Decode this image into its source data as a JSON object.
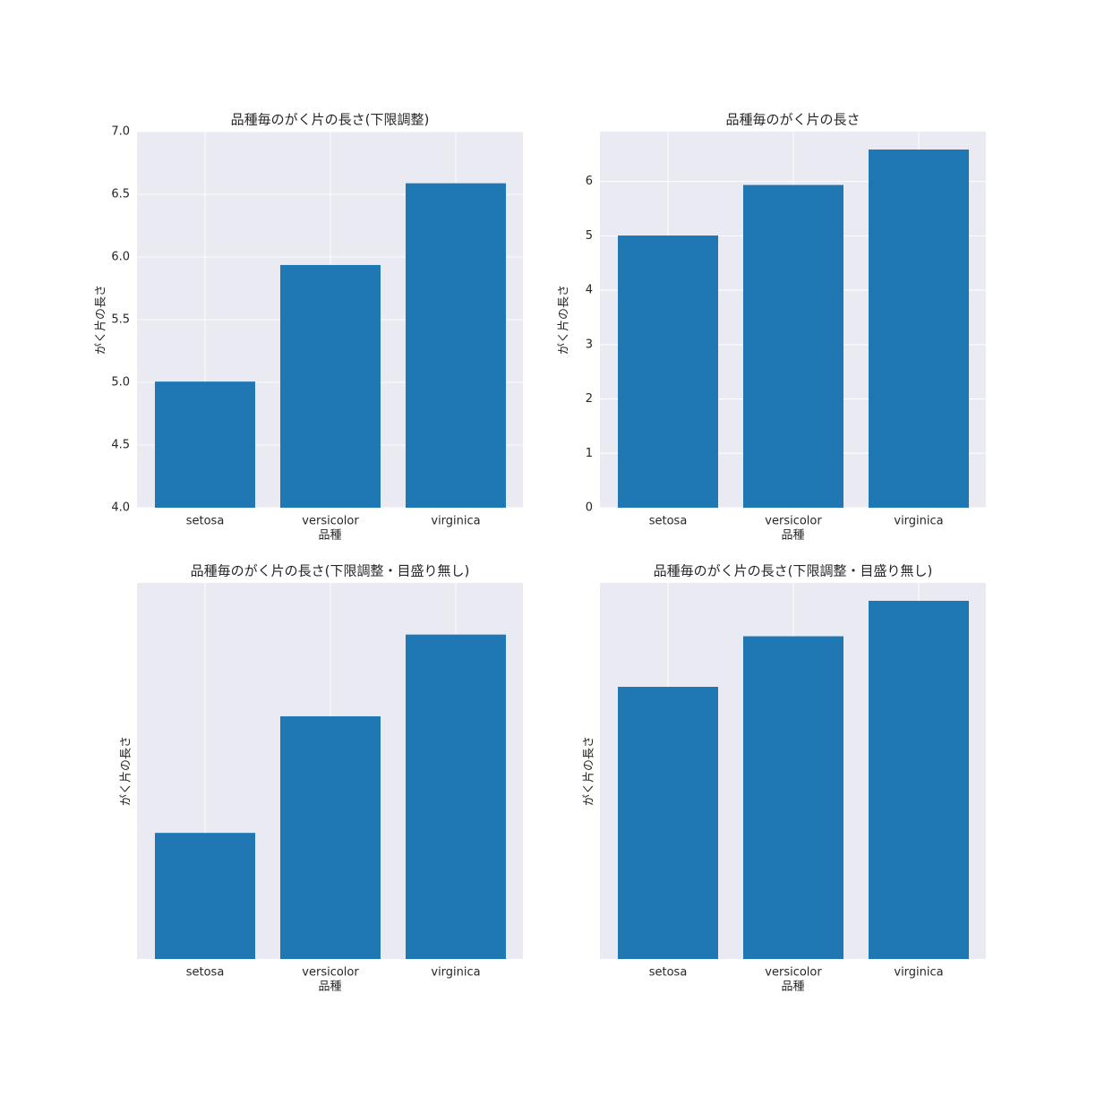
{
  "chart_data": [
    {
      "type": "bar",
      "title": "品種毎のがく片の長さ(下限調整)",
      "xlabel": "品種",
      "ylabel": "がく片の長さ",
      "categories": [
        "setosa",
        "versicolor",
        "virginica"
      ],
      "values": [
        5.006,
        5.936,
        6.588
      ],
      "color": "#1f77b4",
      "ylim": [
        4,
        7
      ],
      "yticks": [
        {
          "value": 4,
          "label": "4.0"
        },
        4.5,
        {
          "value": 5,
          "label": "5.0"
        },
        5.5,
        {
          "value": 6,
          "label": "6.0"
        },
        6.5,
        {
          "value": 7,
          "label": "7.0"
        }
      ],
      "grid": true
    },
    {
      "type": "bar",
      "title": "品種毎のがく片の長さ",
      "xlabel": "品種",
      "ylabel": "がく片の長さ",
      "categories": [
        "setosa",
        "versicolor",
        "virginica"
      ],
      "values": [
        5.006,
        5.936,
        6.588
      ],
      "color": "#1f77b4",
      "ylim": [
        0,
        6.917
      ],
      "yticks": [
        0,
        1,
        2,
        3,
        4,
        5,
        6
      ],
      "grid": true
    },
    {
      "type": "bar",
      "title": "品種毎のがく片の長さ(下限調整・目盛り無し)",
      "xlabel": "品種",
      "ylabel": "がく片の長さ",
      "categories": [
        "setosa",
        "versicolor",
        "virginica"
      ],
      "values": [
        5.006,
        5.936,
        6.588
      ],
      "color": "#1f77b4",
      "ylim": [
        4,
        7
      ],
      "grid": true
    },
    {
      "type": "bar",
      "title": "品種毎のがく片の長さ(下限調整・目盛り無し)",
      "xlabel": "品種",
      "ylabel": "がく片の長さ",
      "categories": [
        "setosa",
        "versicolor",
        "virginica"
      ],
      "values": [
        5.006,
        5.936,
        6.588
      ],
      "color": "#1f77b4",
      "ylim": [
        0,
        6.917
      ],
      "grid": true
    }
  ]
}
